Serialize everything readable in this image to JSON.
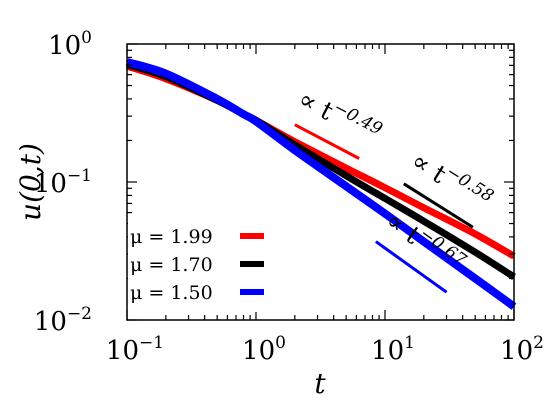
{
  "chart_data": {
    "type": "line",
    "xscale": "log",
    "yscale": "log",
    "xlim": [
      0.1,
      100
    ],
    "ylim": [
      0.01,
      1
    ],
    "xlabel": "t",
    "ylabel": "u(0,t)",
    "grid": false,
    "legend_position": "bottom-left",
    "x_ticks": [
      {
        "base": "10",
        "exp": "−1"
      },
      {
        "base": "10",
        "exp": "0"
      },
      {
        "base": "10",
        "exp": "1"
      },
      {
        "base": "10",
        "exp": "2"
      }
    ],
    "y_ticks": [
      {
        "base": "10",
        "exp": "−2"
      },
      {
        "base": "10",
        "exp": "−1"
      },
      {
        "base": "10",
        "exp": "0"
      }
    ],
    "series": [
      {
        "name": "μ = 1.99",
        "color": "#ff0000",
        "x": [
          0.1,
          0.2,
          0.5,
          0.8,
          1,
          2,
          5,
          10,
          20,
          50,
          100
        ],
        "y": [
          0.69,
          0.56,
          0.39,
          0.31,
          0.28,
          0.196,
          0.126,
          0.091,
          0.065,
          0.042,
          0.029
        ]
      },
      {
        "name": "μ = 1.70",
        "color": "#000000",
        "x": [
          0.1,
          0.2,
          0.5,
          0.8,
          1,
          2,
          5,
          10,
          20,
          50,
          100
        ],
        "y": [
          0.71,
          0.58,
          0.39,
          0.31,
          0.28,
          0.186,
          0.111,
          0.076,
          0.052,
          0.031,
          0.0205
        ]
      },
      {
        "name": "μ = 1.50",
        "color": "#0000ff",
        "x": [
          0.1,
          0.2,
          0.5,
          0.8,
          1,
          2,
          5,
          10,
          20,
          50,
          100
        ],
        "y": [
          0.74,
          0.61,
          0.4,
          0.31,
          0.275,
          0.17,
          0.093,
          0.059,
          0.037,
          0.02,
          0.0125
        ]
      }
    ],
    "annotations": [
      {
        "base": "∝ t",
        "exp": "−0.49",
        "color": "#ff0000",
        "x": [
          2,
          6.3
        ],
        "y": [
          0.26,
          0.148
        ]
      },
      {
        "base": "∝ t",
        "exp": "−0.58",
        "color": "#000000",
        "x": [
          14,
          48
        ],
        "y": [
          0.097,
          0.047
        ]
      },
      {
        "base": "∝ t",
        "exp": "−0.67",
        "color": "#0000ff",
        "x": [
          8.5,
          30
        ],
        "y": [
          0.037,
          0.0159
        ]
      }
    ]
  }
}
